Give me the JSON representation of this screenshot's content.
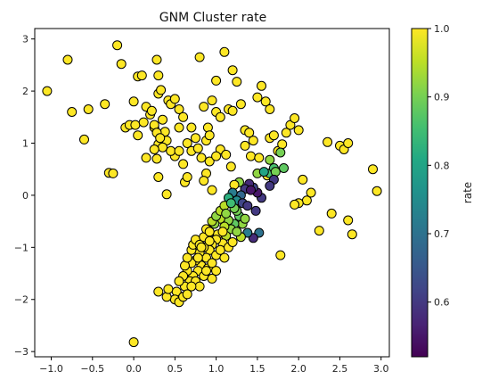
{
  "chart_data": {
    "type": "scatter",
    "title": "GNM Cluster rate",
    "xlabel": "",
    "ylabel": "",
    "xlim": [
      -1.2,
      3.1
    ],
    "ylim": [
      -3.1,
      3.2
    ],
    "xticks": [
      "−1.0",
      "−0.5",
      "0.0",
      "0.5",
      "1.0",
      "1.5",
      "2.0",
      "2.5",
      "3.0"
    ],
    "xtick_values": [
      -1.0,
      -0.5,
      0.0,
      0.5,
      1.0,
      1.5,
      2.0,
      2.5,
      3.0
    ],
    "yticks": [
      "−3",
      "−2",
      "−1",
      "0",
      "1",
      "2",
      "3"
    ],
    "ytick_values": [
      -3,
      -2,
      -1,
      0,
      1,
      2,
      3
    ],
    "grid": false,
    "colorbar": {
      "label": "rate",
      "range": [
        0.52,
        1.0
      ],
      "ticks": [
        "0.6",
        "0.7",
        "0.8",
        "0.9",
        "1.0"
      ],
      "tick_values": [
        0.6,
        0.7,
        0.8,
        0.9,
        1.0
      ],
      "colormap": "viridis"
    },
    "points": [
      [
        -1.05,
        2.0,
        1.0
      ],
      [
        -0.8,
        2.6,
        1.0
      ],
      [
        -0.75,
        1.6,
        1.0
      ],
      [
        -0.6,
        1.07,
        1.0
      ],
      [
        -0.55,
        1.65,
        1.0
      ],
      [
        -0.35,
        1.75,
        1.0
      ],
      [
        -0.3,
        0.43,
        1.0
      ],
      [
        -0.25,
        0.42,
        1.0
      ],
      [
        -0.2,
        2.88,
        1.0
      ],
      [
        -0.15,
        2.52,
        1.0
      ],
      [
        -0.1,
        1.3,
        1.0
      ],
      [
        -0.05,
        1.35,
        1.0
      ],
      [
        0.05,
        2.28,
        1.0
      ],
      [
        0.1,
        2.3,
        1.0
      ],
      [
        0.28,
        2.6,
        1.0
      ],
      [
        0.3,
        2.3,
        1.0
      ],
      [
        0.0,
        1.8,
        1.0
      ],
      [
        0.02,
        1.35,
        1.0
      ],
      [
        0.05,
        1.15,
        1.0
      ],
      [
        0.12,
        1.4,
        1.0
      ],
      [
        0.15,
        1.7,
        1.0
      ],
      [
        0.2,
        1.55,
        1.0
      ],
      [
        0.22,
        1.62,
        1.0
      ],
      [
        0.25,
        1.3,
        1.0
      ],
      [
        0.3,
        1.95,
        1.0
      ],
      [
        0.33,
        2.02,
        1.0
      ],
      [
        0.35,
        1.45,
        1.0
      ],
      [
        0.38,
        1.22,
        1.0
      ],
      [
        0.4,
        1.05,
        1.0
      ],
      [
        0.42,
        1.82,
        1.0
      ],
      [
        0.25,
        1.35,
        1.0
      ],
      [
        0.28,
        1.2,
        1.0
      ],
      [
        0.3,
        0.98,
        1.0
      ],
      [
        0.32,
        1.1,
        1.0
      ],
      [
        0.35,
        0.92,
        1.0
      ],
      [
        0.45,
        1.75,
        1.0
      ],
      [
        0.5,
        1.85,
        1.0
      ],
      [
        0.55,
        1.65,
        1.0
      ],
      [
        0.55,
        1.3,
        1.0
      ],
      [
        0.6,
        1.5,
        1.0
      ],
      [
        0.65,
        1.0,
        1.0
      ],
      [
        0.7,
        1.3,
        1.0
      ],
      [
        0.75,
        1.1,
        1.0
      ],
      [
        0.8,
        2.65,
        1.0
      ],
      [
        0.85,
        1.7,
        1.0
      ],
      [
        0.88,
        1.05,
        1.0
      ],
      [
        0.9,
        1.3,
        1.0
      ],
      [
        0.92,
        1.15,
        1.0
      ],
      [
        0.95,
        1.82,
        1.0
      ],
      [
        1.0,
        2.2,
        1.0
      ],
      [
        1.0,
        1.6,
        1.0
      ],
      [
        1.05,
        1.5,
        1.0
      ],
      [
        1.1,
        2.75,
        1.0
      ],
      [
        1.15,
        1.65,
        1.0
      ],
      [
        1.2,
        1.62,
        1.0
      ],
      [
        1.2,
        2.4,
        1.0
      ],
      [
        1.25,
        2.18,
        1.0
      ],
      [
        1.3,
        1.75,
        1.0
      ],
      [
        1.35,
        1.25,
        1.0
      ],
      [
        1.4,
        1.2,
        1.0
      ],
      [
        1.45,
        1.05,
        1.0
      ],
      [
        1.5,
        1.88,
        1.0
      ],
      [
        1.55,
        2.1,
        1.0
      ],
      [
        1.6,
        1.8,
        1.0
      ],
      [
        1.65,
        1.65,
        1.0
      ],
      [
        1.65,
        1.1,
        1.0
      ],
      [
        1.7,
        1.15,
        1.0
      ],
      [
        1.75,
        0.85,
        1.0
      ],
      [
        1.8,
        0.98,
        1.0
      ],
      [
        1.85,
        1.2,
        1.0
      ],
      [
        1.9,
        1.35,
        1.0
      ],
      [
        1.95,
        1.48,
        1.0
      ],
      [
        2.0,
        1.25,
        1.0
      ],
      [
        2.05,
        0.3,
        1.0
      ],
      [
        2.1,
        -0.1,
        1.0
      ],
      [
        2.15,
        0.05,
        1.0
      ],
      [
        2.0,
        -0.15,
        1.0
      ],
      [
        1.95,
        -0.18,
        1.0
      ],
      [
        2.25,
        -0.68,
        1.0
      ],
      [
        2.35,
        1.02,
        1.0
      ],
      [
        2.4,
        -0.35,
        1.0
      ],
      [
        2.5,
        0.95,
        1.0
      ],
      [
        2.55,
        0.88,
        1.0
      ],
      [
        2.6,
        1.0,
        1.0
      ],
      [
        2.6,
        -0.48,
        1.0
      ],
      [
        2.65,
        -0.75,
        1.0
      ],
      [
        2.9,
        0.5,
        1.0
      ],
      [
        2.95,
        0.08,
        1.0
      ],
      [
        1.78,
        -1.15,
        1.0
      ],
      [
        0.0,
        -2.82,
        1.0
      ],
      [
        0.4,
        0.02,
        1.0
      ],
      [
        0.6,
        0.6,
        1.0
      ],
      [
        0.62,
        0.25,
        1.0
      ],
      [
        0.65,
        0.35,
        1.0
      ],
      [
        0.88,
        0.42,
        1.0
      ],
      [
        0.92,
        0.65,
        1.0
      ],
      [
        0.95,
        0.1,
        1.0
      ],
      [
        1.05,
        0.88,
        1.0
      ],
      [
        1.12,
        0.78,
        1.0
      ],
      [
        1.18,
        0.55,
        1.0
      ],
      [
        1.0,
        0.75,
        1.0
      ],
      [
        0.5,
        0.75,
        1.0
      ],
      [
        0.45,
        0.85,
        1.0
      ],
      [
        0.55,
        0.85,
        1.0
      ],
      [
        0.15,
        0.72,
        1.0
      ],
      [
        0.25,
        0.88,
        1.0
      ],
      [
        0.28,
        0.7,
        1.0
      ],
      [
        0.3,
        0.35,
        1.0
      ],
      [
        0.7,
        0.85,
        1.0
      ],
      [
        0.78,
        0.9,
        1.0
      ],
      [
        0.82,
        0.72,
        1.0
      ],
      [
        0.85,
        0.28,
        1.0
      ],
      [
        1.35,
        0.95,
        1.0
      ],
      [
        1.42,
        0.75,
        1.0
      ],
      [
        1.52,
        0.72,
        1.0
      ],
      [
        1.5,
        0.42,
        0.92
      ],
      [
        1.62,
        0.38,
        1.0
      ],
      [
        1.65,
        0.68,
        0.92
      ],
      [
        1.65,
        0.42,
        0.86
      ],
      [
        1.7,
        0.52,
        0.86
      ],
      [
        1.72,
        0.45,
        0.9
      ],
      [
        1.78,
        0.82,
        0.9
      ],
      [
        1.82,
        0.52,
        0.88
      ],
      [
        1.7,
        0.3,
        0.6
      ],
      [
        1.65,
        0.18,
        0.6
      ],
      [
        1.58,
        0.45,
        0.8
      ],
      [
        1.55,
        -0.05,
        0.6
      ],
      [
        1.5,
        0.05,
        0.55
      ],
      [
        1.45,
        0.15,
        0.62
      ],
      [
        1.4,
        0.22,
        0.58
      ],
      [
        1.35,
        0.12,
        0.6
      ],
      [
        1.3,
        0.0,
        0.68
      ],
      [
        1.28,
        0.25,
        0.92
      ],
      [
        1.22,
        0.2,
        1.0
      ],
      [
        1.2,
        0.05,
        0.72
      ],
      [
        1.15,
        -0.05,
        0.82
      ],
      [
        1.25,
        -0.1,
        0.75
      ],
      [
        1.32,
        -0.15,
        0.62
      ],
      [
        1.38,
        -0.2,
        0.6
      ],
      [
        1.42,
        0.1,
        0.55
      ],
      [
        1.48,
        -0.3,
        0.6
      ],
      [
        1.52,
        -0.72,
        0.7
      ],
      [
        1.45,
        -0.82,
        0.58
      ],
      [
        1.38,
        -0.72,
        0.72
      ],
      [
        1.3,
        -0.8,
        0.95
      ],
      [
        1.32,
        -0.55,
        0.92
      ],
      [
        1.28,
        -0.4,
        0.88
      ],
      [
        1.25,
        -0.3,
        0.9
      ],
      [
        1.22,
        -0.55,
        0.88
      ],
      [
        1.18,
        -0.65,
        0.92
      ],
      [
        1.15,
        -0.48,
        0.92
      ],
      [
        1.12,
        -0.78,
        0.95
      ],
      [
        1.1,
        -0.6,
        0.95
      ],
      [
        1.08,
        -0.92,
        1.0
      ],
      [
        1.05,
        -0.45,
        0.95
      ],
      [
        1.02,
        -0.75,
        1.0
      ],
      [
        1.0,
        -0.85,
        1.0
      ],
      [
        0.98,
        -0.55,
        0.92
      ],
      [
        0.95,
        -0.95,
        1.0
      ],
      [
        0.92,
        -1.05,
        1.0
      ],
      [
        0.9,
        -0.8,
        1.0
      ],
      [
        0.88,
        -1.2,
        1.0
      ],
      [
        0.85,
        -1.0,
        1.0
      ],
      [
        0.82,
        -1.35,
        1.0
      ],
      [
        0.8,
        -1.1,
        1.0
      ],
      [
        0.78,
        -1.45,
        1.0
      ],
      [
        0.75,
        -1.25,
        1.0
      ],
      [
        0.72,
        -1.55,
        1.0
      ],
      [
        0.7,
        -1.3,
        1.0
      ],
      [
        0.68,
        -1.65,
        1.0
      ],
      [
        0.65,
        -1.45,
        1.0
      ],
      [
        0.62,
        -1.75,
        1.0
      ],
      [
        0.6,
        -1.55,
        1.0
      ],
      [
        0.58,
        -1.95,
        1.0
      ],
      [
        0.55,
        -1.65,
        1.0
      ],
      [
        0.52,
        -1.85,
        1.0
      ],
      [
        0.5,
        -2.0,
        1.0
      ],
      [
        0.55,
        -2.05,
        1.0
      ],
      [
        0.6,
        -1.95,
        1.0
      ],
      [
        0.4,
        -1.95,
        1.0
      ],
      [
        0.42,
        -1.8,
        1.0
      ],
      [
        0.3,
        -1.85,
        1.0
      ],
      [
        0.62,
        -1.35,
        1.0
      ],
      [
        0.65,
        -1.2,
        1.0
      ],
      [
        0.7,
        -1.05,
        1.0
      ],
      [
        0.72,
        -0.95,
        1.0
      ],
      [
        0.75,
        -0.85,
        1.0
      ],
      [
        0.8,
        -0.95,
        1.0
      ],
      [
        0.85,
        -0.8,
        1.0
      ],
      [
        0.88,
        -0.65,
        1.0
      ],
      [
        0.92,
        -0.7,
        1.0
      ],
      [
        0.95,
        -0.5,
        0.95
      ],
      [
        1.0,
        -0.4,
        0.92
      ],
      [
        1.05,
        -0.3,
        0.95
      ],
      [
        1.1,
        -0.2,
        0.95
      ],
      [
        0.85,
        -1.55,
        1.0
      ],
      [
        0.9,
        -1.4,
        1.0
      ],
      [
        0.95,
        -1.3,
        1.0
      ],
      [
        1.0,
        -1.15,
        1.0
      ],
      [
        1.05,
        -1.05,
        1.0
      ],
      [
        1.1,
        -1.2,
        1.0
      ],
      [
        1.15,
        -1.0,
        1.0
      ],
      [
        1.2,
        -0.9,
        1.0
      ],
      [
        0.75,
        -1.65,
        1.0
      ],
      [
        0.8,
        -1.75,
        1.0
      ],
      [
        0.7,
        -1.75,
        1.0
      ],
      [
        0.65,
        -1.9,
        1.0
      ],
      [
        0.95,
        -1.6,
        1.0
      ],
      [
        1.0,
        -1.45,
        1.0
      ],
      [
        0.88,
        -1.45,
        1.0
      ],
      [
        0.78,
        -1.2,
        1.0
      ],
      [
        0.82,
        -1.0,
        1.0
      ],
      [
        0.92,
        -0.88,
        1.0
      ],
      [
        1.08,
        -0.7,
        1.0
      ],
      [
        1.12,
        -0.35,
        0.92
      ],
      [
        1.22,
        -0.25,
        0.9
      ],
      [
        1.18,
        -0.15,
        0.85
      ],
      [
        1.35,
        -0.45,
        0.92
      ],
      [
        1.25,
        -0.7,
        0.92
      ]
    ]
  }
}
